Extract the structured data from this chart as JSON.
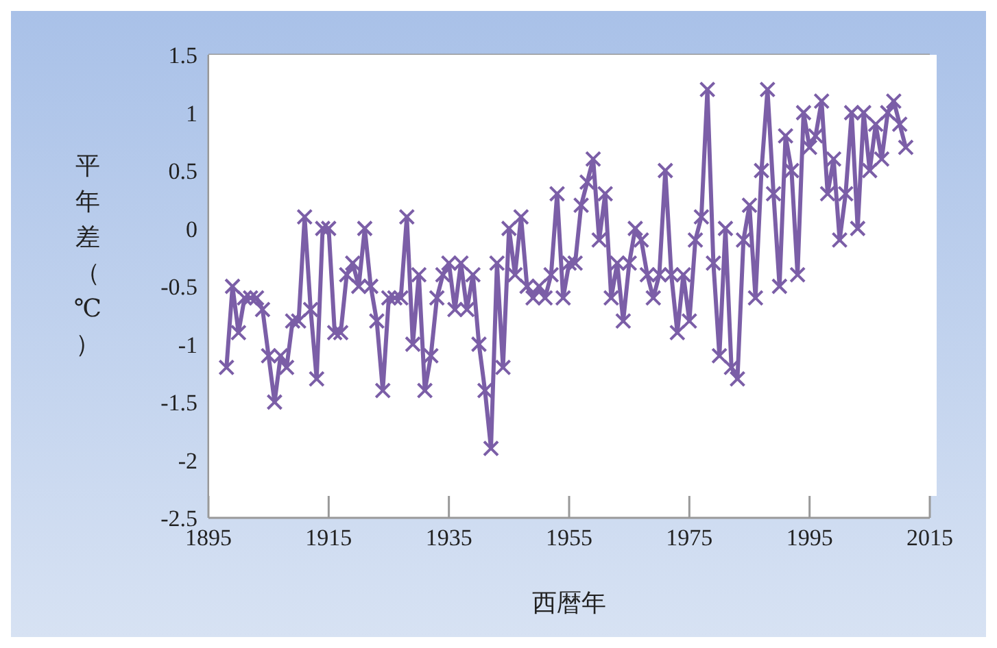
{
  "chart_data": {
    "type": "line",
    "xlabel": "西暦年",
    "ylabel": "平年差（℃）",
    "x": [
      1898,
      1899,
      1900,
      1901,
      1902,
      1903,
      1904,
      1905,
      1906,
      1907,
      1908,
      1909,
      1910,
      1911,
      1912,
      1913,
      1914,
      1915,
      1916,
      1917,
      1918,
      1919,
      1920,
      1921,
      1922,
      1923,
      1924,
      1925,
      1926,
      1927,
      1928,
      1929,
      1930,
      1931,
      1932,
      1933,
      1934,
      1935,
      1936,
      1937,
      1938,
      1939,
      1940,
      1941,
      1942,
      1943,
      1944,
      1945,
      1946,
      1947,
      1948,
      1949,
      1950,
      1951,
      1952,
      1953,
      1954,
      1955,
      1956,
      1957,
      1958,
      1959,
      1960,
      1961,
      1962,
      1963,
      1964,
      1965,
      1966,
      1967,
      1968,
      1969,
      1970,
      1971,
      1972,
      1973,
      1974,
      1975,
      1976,
      1977,
      1978,
      1979,
      1980,
      1981,
      1982,
      1983,
      1984,
      1985,
      1986,
      1987,
      1988,
      1989,
      1990,
      1991,
      1992,
      1993,
      1994,
      1995,
      1996,
      1997,
      1998,
      1999,
      2000,
      2001,
      2002,
      2003,
      2004,
      2005,
      2006,
      2007,
      2008,
      2009,
      2010,
      2011
    ],
    "series": [
      {
        "color": "#7b5ea7",
        "values": [
          -1.2,
          -0.5,
          -0.9,
          -0.6,
          -0.6,
          -0.6,
          -0.7,
          -1.1,
          -1.5,
          -1.1,
          -1.2,
          -0.8,
          -0.8,
          0.1,
          -0.7,
          -1.3,
          0.0,
          0.0,
          -0.9,
          -0.9,
          -0.4,
          -0.3,
          -0.5,
          0.0,
          -0.5,
          -0.8,
          -1.4,
          -0.6,
          -0.6,
          -0.6,
          0.1,
          -1.0,
          -0.4,
          -1.4,
          -1.1,
          -0.6,
          -0.4,
          -0.3,
          -0.7,
          -0.3,
          -0.7,
          -0.4,
          -1.0,
          -1.4,
          -1.9,
          -0.3,
          -1.2,
          0.0,
          -0.4,
          0.1,
          -0.5,
          -0.6,
          -0.5,
          -0.6,
          -0.4,
          0.3,
          -0.6,
          -0.3,
          -0.3,
          0.2,
          0.4,
          0.6,
          -0.1,
          0.3,
          -0.6,
          -0.3,
          -0.8,
          -0.3,
          0.0,
          -0.1,
          -0.4,
          -0.6,
          -0.4,
          0.5,
          -0.4,
          -0.9,
          -0.4,
          -0.8,
          -0.1,
          0.1,
          1.2,
          -0.3,
          -1.1,
          0.0,
          -1.2,
          -1.3,
          -0.1,
          0.2,
          -0.6,
          0.5,
          1.2,
          0.3,
          -0.5,
          0.8,
          0.5,
          -0.4,
          1.0,
          0.7,
          0.8,
          1.1,
          0.3,
          0.6,
          -0.1,
          0.3,
          1.0,
          0.0,
          1.0,
          0.5,
          0.9,
          0.6,
          1.0,
          1.1,
          0.9,
          0.7
        ]
      }
    ],
    "xlim": [
      1895,
      2015
    ],
    "xticks": [
      1895,
      1915,
      1935,
      1955,
      1975,
      1995,
      2015
    ],
    "ylim": [
      -2.5,
      1.5
    ],
    "yticks": [
      -2.5,
      -2,
      -1.5,
      -1,
      -0.5,
      0,
      0.5,
      1,
      1.5
    ],
    "grid": true,
    "legend": false,
    "marker": "cross",
    "line_style": "solid"
  }
}
